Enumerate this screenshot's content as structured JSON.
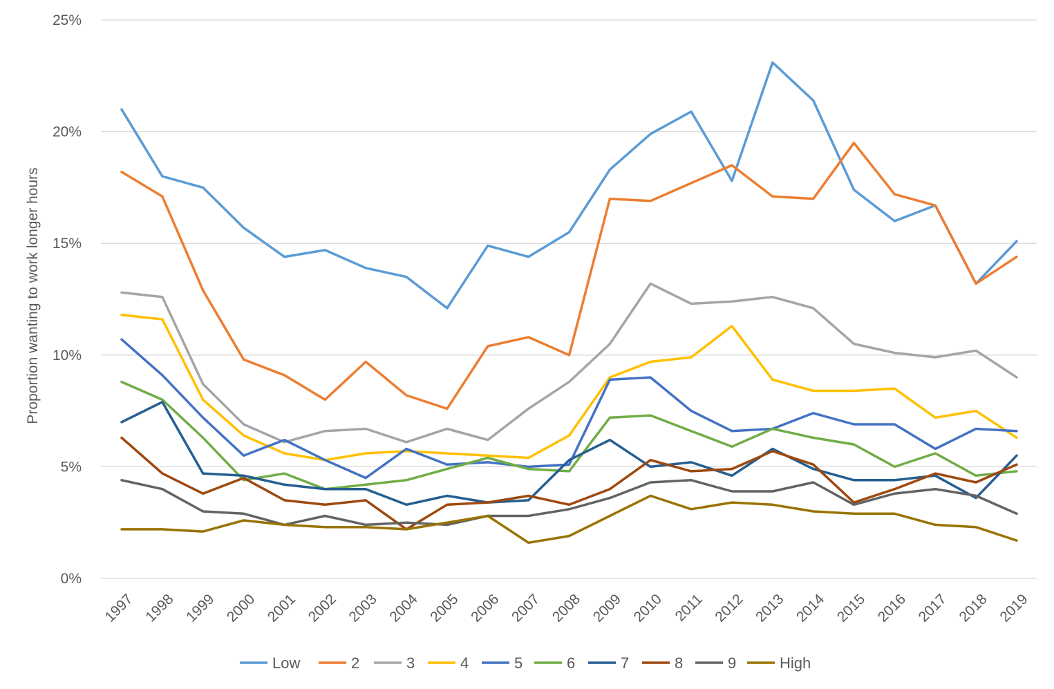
{
  "chart_data": {
    "type": "line",
    "title": "",
    "xlabel": "",
    "ylabel": "Proportion wanting to work longer hours",
    "ylim": [
      0,
      25
    ],
    "y_ticks": [
      "0%",
      "5%",
      "10%",
      "15%",
      "20%",
      "25%"
    ],
    "y_tick_values": [
      0,
      5,
      10,
      15,
      20,
      25
    ],
    "grid": "horizontal",
    "legend_position": "bottom",
    "categories": [
      "1997",
      "1998",
      "1999",
      "2000",
      "2001",
      "2002",
      "2003",
      "2004",
      "2005",
      "2006",
      "2007",
      "2008",
      "2009",
      "2010",
      "2011",
      "2012",
      "2013",
      "2014",
      "2015",
      "2016",
      "2017",
      "2018",
      "2019"
    ],
    "series": [
      {
        "name": "Low",
        "color": "#5b9bd5",
        "values": [
          21.0,
          18.0,
          17.5,
          15.7,
          14.4,
          14.7,
          13.9,
          13.5,
          12.1,
          14.9,
          14.4,
          15.5,
          18.3,
          19.9,
          20.9,
          17.8,
          23.1,
          21.4,
          17.4,
          16.0,
          16.7,
          13.2,
          15.1
        ]
      },
      {
        "name": "2",
        "color": "#ed7d31",
        "values": [
          18.2,
          17.1,
          12.9,
          9.8,
          9.1,
          8.0,
          9.7,
          8.2,
          7.6,
          10.4,
          10.8,
          10.0,
          17.0,
          16.9,
          17.7,
          18.5,
          17.1,
          17.0,
          19.5,
          17.2,
          16.7,
          13.2,
          14.4
        ]
      },
      {
        "name": "3",
        "color": "#a5a5a5",
        "values": [
          12.8,
          12.6,
          8.7,
          6.9,
          6.1,
          6.6,
          6.7,
          6.1,
          6.7,
          6.2,
          7.6,
          8.8,
          10.5,
          13.2,
          12.3,
          12.4,
          12.6,
          12.1,
          10.5,
          10.1,
          9.9,
          10.2,
          9.0
        ]
      },
      {
        "name": "4",
        "color": "#ffc000",
        "values": [
          11.8,
          11.6,
          8.0,
          6.4,
          5.6,
          5.3,
          5.6,
          5.7,
          5.6,
          5.5,
          5.4,
          6.4,
          9.0,
          9.7,
          9.9,
          11.3,
          8.9,
          8.4,
          8.4,
          8.5,
          7.2,
          7.5,
          6.3
        ]
      },
      {
        "name": "5",
        "color": "#4472c4",
        "values": [
          10.7,
          9.1,
          7.2,
          5.5,
          6.2,
          5.3,
          4.5,
          5.8,
          5.1,
          5.2,
          5.0,
          5.1,
          8.9,
          9.0,
          7.5,
          6.6,
          6.7,
          7.4,
          6.9,
          6.9,
          5.8,
          6.7,
          6.6
        ]
      },
      {
        "name": "6",
        "color": "#70ad47",
        "values": [
          8.8,
          8.0,
          6.3,
          4.4,
          4.7,
          4.0,
          4.2,
          4.4,
          4.9,
          5.4,
          4.9,
          4.8,
          7.2,
          7.3,
          6.6,
          5.9,
          6.7,
          6.3,
          6.0,
          5.0,
          5.6,
          4.6,
          4.8
        ]
      },
      {
        "name": "7",
        "color": "#255e91",
        "values": [
          7.0,
          7.9,
          4.7,
          4.6,
          4.2,
          4.0,
          4.0,
          3.3,
          3.7,
          3.4,
          3.5,
          5.3,
          6.2,
          5.0,
          5.2,
          4.6,
          5.8,
          4.9,
          4.4,
          4.4,
          4.6,
          3.6,
          5.5
        ]
      },
      {
        "name": "8",
        "color": "#9e480e",
        "values": [
          6.3,
          4.7,
          3.8,
          4.5,
          3.5,
          3.3,
          3.5,
          2.2,
          3.3,
          3.4,
          3.7,
          3.3,
          4.0,
          5.3,
          4.8,
          4.9,
          5.7,
          5.1,
          3.4,
          4.0,
          4.7,
          4.3,
          5.1
        ]
      },
      {
        "name": "9",
        "color": "#636363",
        "values": [
          4.4,
          4.0,
          3.0,
          2.9,
          2.4,
          2.8,
          2.4,
          2.5,
          2.4,
          2.8,
          2.8,
          3.1,
          3.6,
          4.3,
          4.4,
          3.9,
          3.9,
          4.3,
          3.3,
          3.8,
          4.0,
          3.7,
          2.9
        ]
      },
      {
        "name": "High",
        "color": "#997300",
        "values": [
          2.2,
          2.2,
          2.1,
          2.6,
          2.4,
          2.3,
          2.3,
          2.2,
          2.5,
          2.8,
          1.6,
          1.9,
          2.8,
          3.7,
          3.1,
          3.4,
          3.3,
          3.0,
          2.9,
          2.9,
          2.4,
          2.3,
          1.7
        ]
      }
    ]
  }
}
